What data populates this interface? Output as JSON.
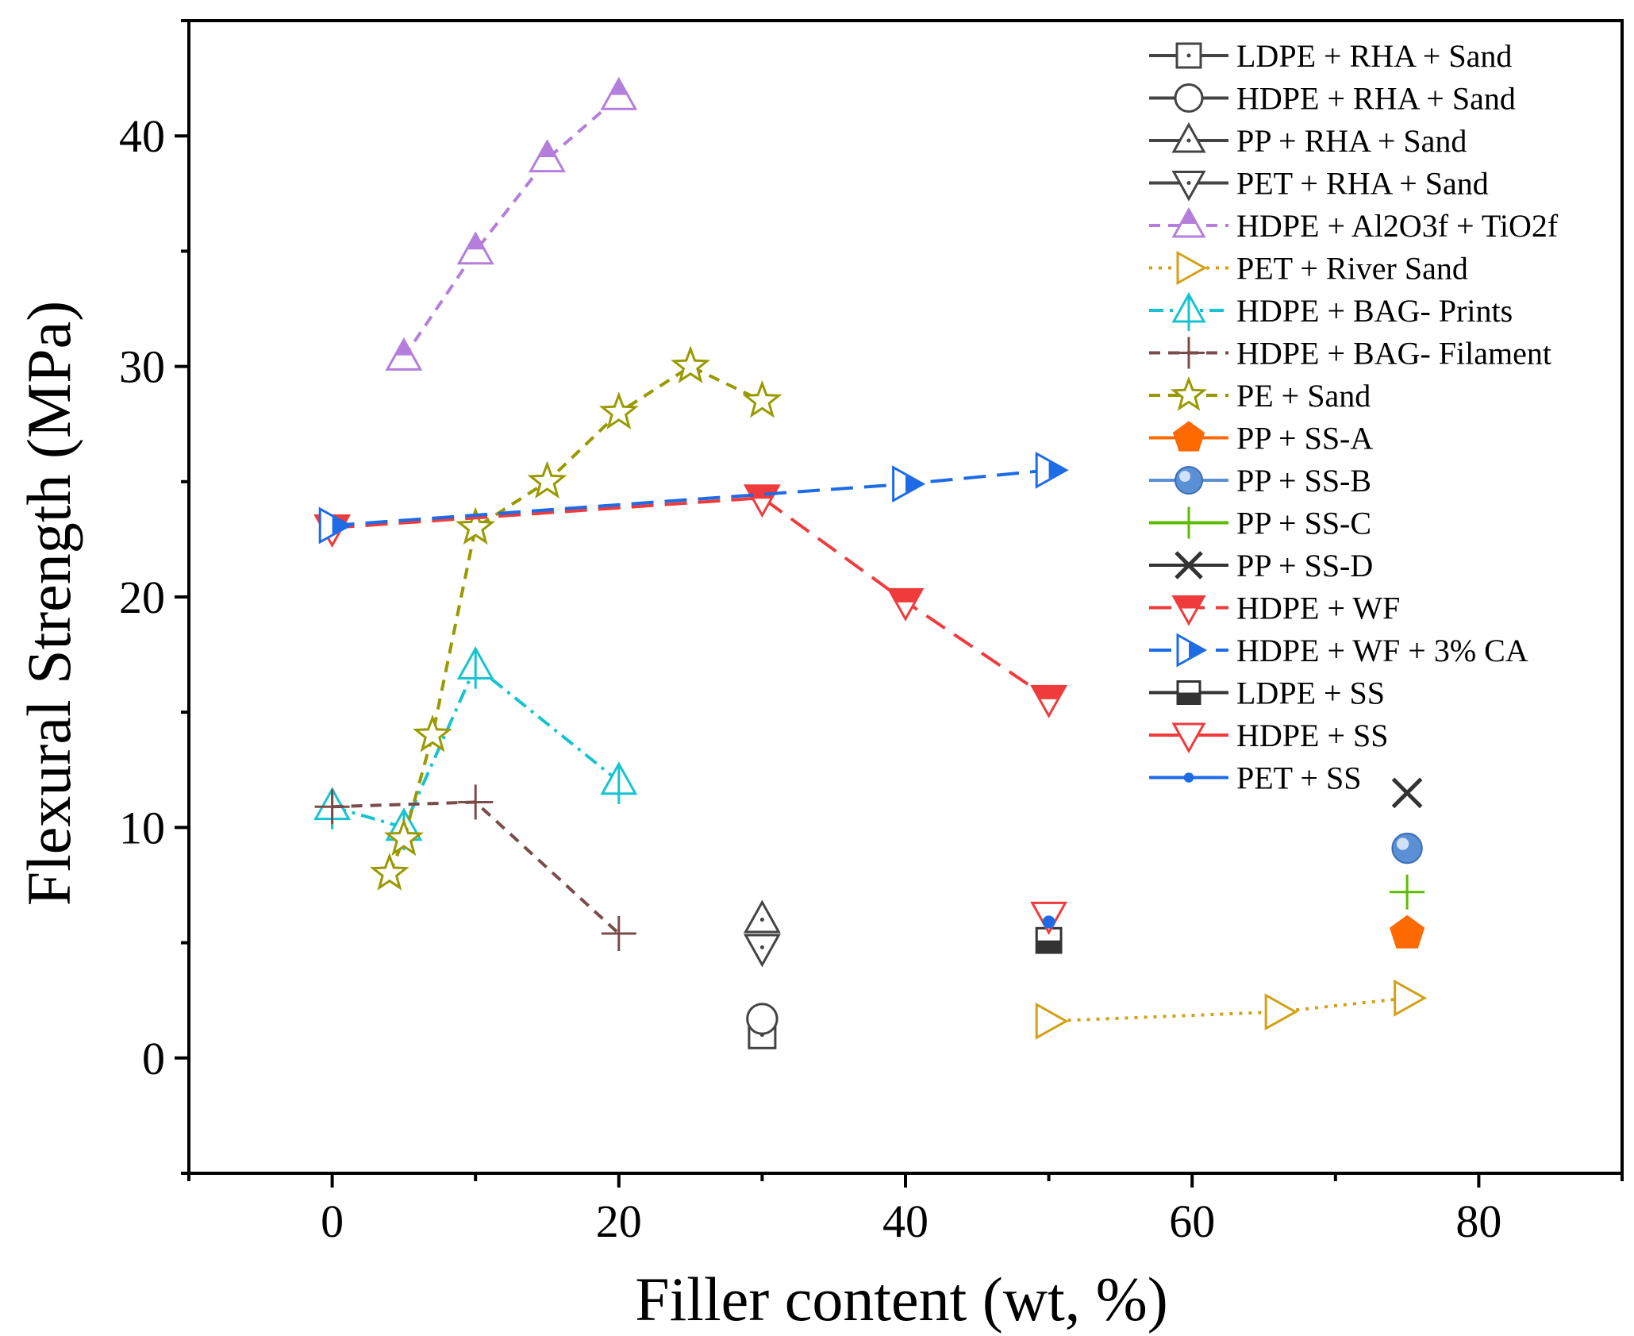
{
  "chart_data": {
    "type": "line",
    "title": "",
    "xlabel": "Filler content (wt, %)",
    "ylabel": "Flexural Strength (MPa)",
    "xlim": [
      -10,
      90
    ],
    "ylim": [
      -5,
      45
    ],
    "xticks": [
      0,
      20,
      40,
      60,
      80
    ],
    "yticks": [
      0,
      10,
      20,
      30,
      40
    ],
    "legend_position": "top-right",
    "grid": false,
    "series": [
      {
        "name": "LDPE + RHA + Sand",
        "x": [
          30
        ],
        "y": [
          1.0
        ],
        "color": "#444444",
        "marker": "square-dot",
        "filled": false,
        "line": "solid"
      },
      {
        "name": "HDPE + RHA + Sand",
        "x": [
          30
        ],
        "y": [
          1.7
        ],
        "color": "#444444",
        "marker": "circle",
        "filled": false,
        "line": "solid"
      },
      {
        "name": "PP + RHA + Sand",
        "x": [
          30
        ],
        "y": [
          6.0
        ],
        "color": "#444444",
        "marker": "triangle-up-dot",
        "filled": false,
        "line": "solid"
      },
      {
        "name": "PET + RHA + Sand",
        "x": [
          30
        ],
        "y": [
          4.8
        ],
        "color": "#444444",
        "marker": "triangle-down-dot",
        "filled": false,
        "line": "solid"
      },
      {
        "name": "HDPE + Al2O3f +  TiO2f",
        "x": [
          5,
          10,
          15,
          20
        ],
        "y": [
          30.4,
          35.0,
          39.0,
          41.7
        ],
        "color": "#b57edc",
        "marker": "triangle-up-half",
        "filled": false,
        "line": "dash"
      },
      {
        "name": "PET + River Sand",
        "x": [
          50,
          66,
          75
        ],
        "y": [
          1.6,
          2.0,
          2.6
        ],
        "color": "#d4a017",
        "marker": "triangle-right",
        "filled": false,
        "line": "dot"
      },
      {
        "name": "HDPE + BAG- Prints",
        "x": [
          0,
          5,
          10,
          20
        ],
        "y": [
          10.9,
          10.0,
          17.0,
          12.0
        ],
        "color": "#17c3d0",
        "marker": "triangle-up-plus",
        "filled": false,
        "line": "dashdot"
      },
      {
        "name": "HDPE + BAG- Filament",
        "x": [
          0,
          10,
          20
        ],
        "y": [
          10.9,
          11.1,
          5.4
        ],
        "color": "#7b4b4b",
        "marker": "plus",
        "filled": false,
        "line": "dash"
      },
      {
        "name": "PE + Sand",
        "x": [
          4,
          5,
          7,
          10,
          15,
          20,
          25,
          30
        ],
        "y": [
          8.0,
          9.5,
          14.0,
          23.0,
          25.0,
          28.0,
          30.0,
          28.5
        ],
        "color": "#999900",
        "marker": "star",
        "filled": false,
        "line": "dash"
      },
      {
        "name": "PP + SS-A",
        "x": [
          75
        ],
        "y": [
          5.4
        ],
        "color": "#ff6a00",
        "marker": "pentagon",
        "filled": true,
        "line": "solid"
      },
      {
        "name": "PP + SS-B",
        "x": [
          75
        ],
        "y": [
          9.1
        ],
        "color": "#5b8fd6",
        "marker": "sphere",
        "filled": true,
        "line": "solid"
      },
      {
        "name": "PP + SS-C",
        "x": [
          75
        ],
        "y": [
          7.2
        ],
        "color": "#5dbb00",
        "marker": "plus",
        "filled": false,
        "line": "solid"
      },
      {
        "name": "PP + SS-D",
        "x": [
          75
        ],
        "y": [
          11.5
        ],
        "color": "#333333",
        "marker": "cross",
        "filled": false,
        "line": "solid"
      },
      {
        "name": "HDPE + WF",
        "x": [
          0,
          30,
          40,
          50
        ],
        "y": [
          23.0,
          24.3,
          19.8,
          15.6
        ],
        "color": "#ef3b3b",
        "marker": "triangle-down-half",
        "filled": false,
        "line": "longdash"
      },
      {
        "name": "HDPE + WF + 3% CA",
        "x": [
          0,
          40,
          50
        ],
        "y": [
          23.1,
          24.9,
          25.5
        ],
        "color": "#1e6be6",
        "marker": "triangle-right-half",
        "filled": false,
        "line": "longdash"
      },
      {
        "name": "LDPE + SS",
        "x": [
          50
        ],
        "y": [
          5.1
        ],
        "color": "#333333",
        "marker": "square-half",
        "filled": false,
        "line": "solid"
      },
      {
        "name": "HDPE + SS",
        "x": [
          50
        ],
        "y": [
          6.2
        ],
        "color": "#ef3b3b",
        "marker": "triangle-down",
        "filled": false,
        "line": "solid"
      },
      {
        "name": "PET + SS",
        "x": [
          50
        ],
        "y": [
          5.9
        ],
        "color": "#1e6be6",
        "marker": "dot",
        "filled": true,
        "line": "solid"
      }
    ]
  }
}
